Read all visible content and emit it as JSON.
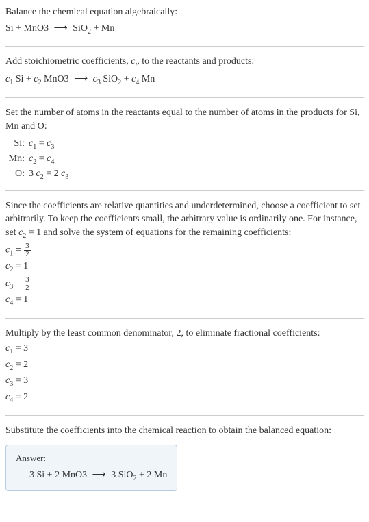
{
  "section1": {
    "line1": "Balance the chemical equation algebraically:",
    "eq_left1": "Si + MnO3",
    "eq_right1a": "SiO",
    "eq_right1b": "2",
    "eq_right1c": " + Mn"
  },
  "section2": {
    "line1a": "Add stoichiometric coefficients, ",
    "line1b": "c",
    "line1c": "i",
    "line1d": ", to the reactants and products:",
    "eq_c1": "c",
    "eq_c1sub": "1",
    "eq_si": " Si + ",
    "eq_c2": "c",
    "eq_c2sub": "2",
    "eq_mno3": " MnO3",
    "eq_c3": "c",
    "eq_c3sub": "3",
    "eq_sio": " SiO",
    "eq_siosub": "2",
    "eq_plus": " + ",
    "eq_c4": "c",
    "eq_c4sub": "4",
    "eq_mn": " Mn"
  },
  "section3": {
    "line1": "Set the number of atoms in the reactants equal to the number of atoms in the products for Si, Mn and O:",
    "rows": [
      {
        "label": "Si:",
        "c_a": "c",
        "a": "1",
        "eq": " = ",
        "c_b": "c",
        "b": "3"
      },
      {
        "label": "Mn:",
        "c_a": "c",
        "a": "2",
        "eq": " = ",
        "c_b": "c",
        "b": "4"
      },
      {
        "label": "O:",
        "pre": "3 ",
        "c_a": "c",
        "a": "2",
        "eq": " = 2 ",
        "c_b": "c",
        "b": "3"
      }
    ]
  },
  "section4": {
    "line1a": "Since the coefficients are relative quantities and underdetermined, choose a coefficient to set arbitrarily. To keep the coefficients small, the arbitrary value is ordinarily one. For instance, set ",
    "line1b": "c",
    "line1c": "2",
    "line1d": " = 1 and solve the system of equations for the remaining coefficients:",
    "coeffs": [
      {
        "c": "c",
        "sub": "1",
        "eq": " = ",
        "frac_num": "3",
        "frac_den": "2"
      },
      {
        "c": "c",
        "sub": "2",
        "eq": " = 1"
      },
      {
        "c": "c",
        "sub": "3",
        "eq": " = ",
        "frac_num": "3",
        "frac_den": "2"
      },
      {
        "c": "c",
        "sub": "4",
        "eq": " = 1"
      }
    ]
  },
  "section5": {
    "line1": "Multiply by the least common denominator, 2, to eliminate fractional coefficients:",
    "coeffs": [
      {
        "c": "c",
        "sub": "1",
        "eq": " = 3"
      },
      {
        "c": "c",
        "sub": "2",
        "eq": " = 2"
      },
      {
        "c": "c",
        "sub": "3",
        "eq": " = 3"
      },
      {
        "c": "c",
        "sub": "4",
        "eq": " = 2"
      }
    ]
  },
  "section6": {
    "line1": "Substitute the coefficients into the chemical reaction to obtain the balanced equation:",
    "answer_label": "Answer:",
    "answer_left": "3 Si + 2 MnO3",
    "answer_right_a": "3 SiO",
    "answer_right_b": "2",
    "answer_right_c": " + 2 Mn"
  },
  "arrow": "⟶"
}
